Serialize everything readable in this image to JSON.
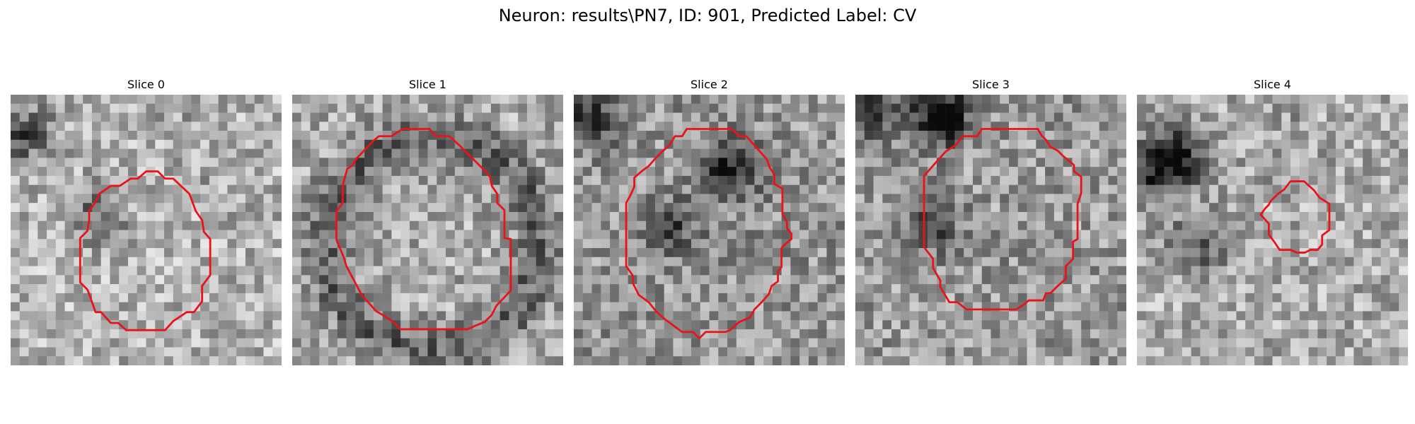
{
  "figure": {
    "title": "Neuron: results\\PN7, ID: 901, Predicted Label: CV",
    "contour_color": "#e8141b"
  },
  "panels": [
    {
      "title": "Slice 0"
    },
    {
      "title": "Slice 1"
    },
    {
      "title": "Slice 2"
    },
    {
      "title": "Slice 3"
    },
    {
      "title": "Slice 4"
    }
  ]
}
